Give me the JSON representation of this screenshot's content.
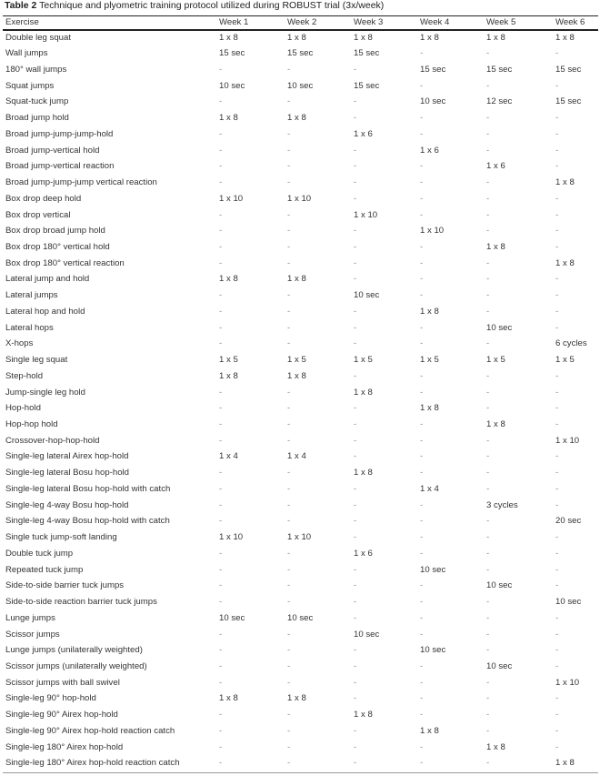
{
  "title": {
    "label": "Table 2",
    "text": " Technique and plyometric training protocol utilized during ROBUST trial (3x/week)"
  },
  "columns": [
    "Exercise",
    "Week 1",
    "Week 2",
    "Week 3",
    "Week 4",
    "Week 5",
    "Week 6"
  ],
  "rows": [
    [
      "Double leg squat",
      "1 x 8",
      "1 x 8",
      "1 x 8",
      "1 x 8",
      "1 x 8",
      "1 x 8"
    ],
    [
      "Wall jumps",
      "15 sec",
      "15 sec",
      "15 sec",
      "-",
      "-",
      "-"
    ],
    [
      "180° wall jumps",
      "-",
      "-",
      "-",
      "15 sec",
      "15 sec",
      "15 sec"
    ],
    [
      "Squat jumps",
      "10 sec",
      "10 sec",
      "15 sec",
      "-",
      "-",
      "-"
    ],
    [
      "Squat-tuck jump",
      "-",
      "-",
      "-",
      "10 sec",
      "12 sec",
      "15 sec"
    ],
    [
      "Broad jump hold",
      "1 x 8",
      "1 x 8",
      "-",
      "-",
      "-",
      "-"
    ],
    [
      "Broad jump-jump-jump-hold",
      "-",
      "-",
      "1 x 6",
      "-",
      "-",
      "-"
    ],
    [
      "Broad jump-vertical hold",
      "-",
      "-",
      "-",
      "1 x 6",
      "-",
      "-"
    ],
    [
      "Broad jump-vertical reaction",
      "-",
      "-",
      "-",
      "-",
      "1 x 6",
      "-"
    ],
    [
      "Broad jump-jump-jump vertical reaction",
      "-",
      "-",
      "-",
      "-",
      "-",
      "1 x 8"
    ],
    [
      "Box drop deep hold",
      "1 x 10",
      "1 x 10",
      "-",
      "-",
      "-",
      "-"
    ],
    [
      "Box drop vertical",
      "-",
      "-",
      "1 x 10",
      "-",
      "-",
      "-"
    ],
    [
      "Box drop broad jump hold",
      "-",
      "-",
      "-",
      "1 x 10",
      "-",
      "-"
    ],
    [
      "Box drop 180° vertical hold",
      "-",
      "-",
      "-",
      "-",
      "1 x 8",
      "-"
    ],
    [
      "Box drop 180° vertical reaction",
      "-",
      "-",
      "-",
      "-",
      "-",
      "1 x 8"
    ],
    [
      "Lateral jump and hold",
      "1 x 8",
      "1 x 8",
      "-",
      "-",
      "-",
      "-"
    ],
    [
      "Lateral jumps",
      "-",
      "-",
      "10 sec",
      "-",
      "-",
      "-"
    ],
    [
      "Lateral hop and hold",
      "-",
      "-",
      "-",
      "1 x 8",
      "-",
      "-"
    ],
    [
      "Lateral hops",
      "-",
      "-",
      "-",
      "-",
      "10 sec",
      "-"
    ],
    [
      "X-hops",
      "-",
      "-",
      "-",
      "-",
      "-",
      "6 cycles"
    ],
    [
      "Single leg squat",
      "1 x 5",
      "1 x 5",
      "1 x 5",
      "1 x 5",
      "1 x 5",
      "1 x 5"
    ],
    [
      "Step-hold",
      "1 x 8",
      "1 x 8",
      "-",
      "-",
      "-",
      "-"
    ],
    [
      "Jump-single leg hold",
      "-",
      "-",
      "1 x 8",
      "-",
      "-",
      "-"
    ],
    [
      "Hop-hold",
      "-",
      "-",
      "-",
      "1 x 8",
      "-",
      "-"
    ],
    [
      "Hop-hop hold",
      "-",
      "-",
      "-",
      "-",
      "1 x 8",
      "-"
    ],
    [
      "Crossover-hop-hop-hold",
      "-",
      "-",
      "-",
      "-",
      "-",
      "1 x 10"
    ],
    [
      "Single-leg lateral Airex hop-hold",
      "1 x 4",
      "1 x 4",
      "-",
      "-",
      "-",
      "-"
    ],
    [
      "Single-leg lateral Bosu hop-hold",
      "-",
      "-",
      "1 x 8",
      "-",
      "-",
      "-"
    ],
    [
      "Single-leg lateral Bosu hop-hold with catch",
      "-",
      "-",
      "-",
      "1 x 4",
      "-",
      "-"
    ],
    [
      "Single-leg 4-way Bosu hop-hold",
      "-",
      "-",
      "-",
      "-",
      "3 cycles",
      "-"
    ],
    [
      "Single-leg 4-way Bosu hop-hold with catch",
      "-",
      "-",
      "-",
      "-",
      "-",
      "20 sec"
    ],
    [
      "Single tuck jump-soft landing",
      "1 x 10",
      "1 x 10",
      "-",
      "-",
      "-",
      "-"
    ],
    [
      "Double tuck jump",
      "-",
      "-",
      "1 x 6",
      "-",
      "-",
      "-"
    ],
    [
      "Repeated tuck jump",
      "-",
      "-",
      "-",
      "10 sec",
      "-",
      "-"
    ],
    [
      "Side-to-side barrier tuck jumps",
      "-",
      "-",
      "-",
      "-",
      "10 sec",
      "-"
    ],
    [
      "Side-to-side reaction barrier tuck jumps",
      "-",
      "-",
      "-",
      "-",
      "-",
      "10 sec"
    ],
    [
      "Lunge jumps",
      "10 sec",
      "10 sec",
      "-",
      "-",
      "-",
      "-"
    ],
    [
      "Scissor jumps",
      "-",
      "-",
      "10 sec",
      "-",
      "-",
      "-"
    ],
    [
      "Lunge jumps (unilaterally weighted)",
      "-",
      "-",
      "-",
      "10 sec",
      "-",
      "-"
    ],
    [
      "Scissor jumps (unilaterally weighted)",
      "-",
      "-",
      "-",
      "-",
      "10 sec",
      "-"
    ],
    [
      "Scissor jumps with ball swivel",
      "-",
      "-",
      "-",
      "-",
      "-",
      "1 x 10"
    ],
    [
      "Single-leg 90° hop-hold",
      "1 x 8",
      "1 x 8",
      "-",
      "-",
      "-",
      "-"
    ],
    [
      "Single-leg 90° Airex hop-hold",
      "-",
      "-",
      "1 x 8",
      "-",
      "-",
      "-"
    ],
    [
      "Single-leg 90° Airex hop-hold reaction catch",
      "-",
      "-",
      "-",
      "1 x 8",
      "-",
      "-"
    ],
    [
      "Single-leg 180° Airex hop-hold",
      "-",
      "-",
      "-",
      "-",
      "1 x 8",
      "-"
    ],
    [
      "Single-leg 180° Airex hop-hold reaction catch",
      "-",
      "-",
      "-",
      "-",
      "-",
      "1 x 8"
    ]
  ]
}
